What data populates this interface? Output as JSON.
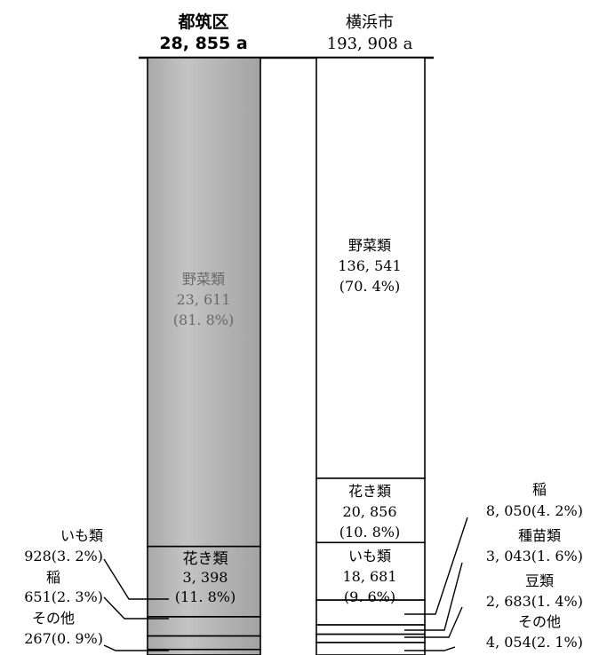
{
  "chart_data": {
    "type": "bar",
    "stacked": true,
    "orientation": "vertical",
    "units": "a",
    "columns": [
      {
        "name": "都筑区",
        "total_label": "28, 855 a",
        "total": 28855,
        "color": "#b9b9b9",
        "segments": [
          {
            "name": "野菜類",
            "value": 23611,
            "value_label": "23, 611",
            "pct_label": "(81. 8%)"
          },
          {
            "name": "花き類",
            "value": 3398,
            "value_label": "3, 398",
            "pct_label": "(11. 8%)"
          },
          {
            "name": "いも類",
            "value": 928,
            "value_label": "928(3. 2%)"
          },
          {
            "name": "稲",
            "value": 651,
            "value_label": "651(2. 3%)"
          },
          {
            "name": "その他",
            "value": 267,
            "value_label": "267(0. 9%)"
          }
        ]
      },
      {
        "name": "横浜市",
        "total_label": "193, 908 a",
        "total": 193908,
        "color": "#ffffff",
        "segments": [
          {
            "name": "野菜類",
            "value": 136541,
            "value_label": "136, 541",
            "pct_label": "(70. 4%)"
          },
          {
            "name": "花き類",
            "value": 20856,
            "value_label": "20, 856",
            "pct_label": "(10. 8%)"
          },
          {
            "name": "いも類",
            "value": 18681,
            "value_label": "18, 681",
            "pct_label": "(9. 6%)"
          },
          {
            "name": "稲",
            "value": 8050,
            "value_label": "8, 050(4. 2%)"
          },
          {
            "name": "種苗類",
            "value": 3043,
            "value_label": "3, 043(1. 6%)"
          },
          {
            "name": "豆類",
            "value": 2683,
            "value_label": "2, 683(1. 4%)"
          },
          {
            "name": "その他",
            "value": 4054,
            "value_label": "4, 054(2. 1%)"
          }
        ]
      }
    ]
  }
}
